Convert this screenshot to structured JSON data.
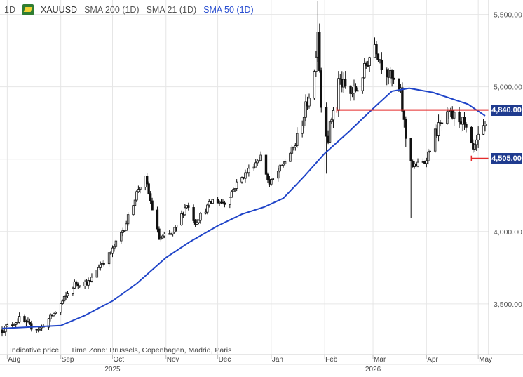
{
  "legend": {
    "timeframe": "1D",
    "symbol": "XAUUSD",
    "indicators": [
      "SMA 200 (1D)",
      "SMA 21 (1D)",
      "SMA 50 (1D)"
    ],
    "indicator_colors": [
      "#555555",
      "#555555",
      "#2a4fd0"
    ],
    "logo_icon": "instrument-flag-icon"
  },
  "footer": {
    "note": "Indicative price",
    "timezone": "Time Zone: Brussels, Copenhagen, Madrid, Paris"
  },
  "colors": {
    "sma50": "#1f44c8",
    "level_line": "#e52b2b",
    "candle": "#111111",
    "grid": "#e6e6e6",
    "tag_bg": "#1f3b8f"
  },
  "price_tags": [
    {
      "label": "4,840.00",
      "value": 4840
    },
    {
      "label": "4,505.00",
      "value": 4505
    }
  ],
  "chart_data": {
    "type": "candlestick",
    "symbol": "XAUUSD",
    "timeframe": "1D",
    "y_range": [
      3150,
      5600
    ],
    "y_ticks": [
      3500,
      4000,
      4500,
      5000,
      5500
    ],
    "y_tick_labels": [
      "3,500.00",
      "4,000.00",
      "4,500.00",
      "5,000.00",
      "5,500.00"
    ],
    "x_range": [
      "2025-07-29",
      "2026-05-05"
    ],
    "x_ticks": [
      {
        "date": "2025-08-01",
        "label": "Aug"
      },
      {
        "date": "2025-09-01",
        "label": "Sep"
      },
      {
        "date": "2025-10-01",
        "label": "Oct"
      },
      {
        "date": "2025-11-01",
        "label": "Nov"
      },
      {
        "date": "2025-12-01",
        "label": "Dec"
      },
      {
        "date": "2026-01-01",
        "label": "Jan"
      },
      {
        "date": "2026-02-01",
        "label": "Feb"
      },
      {
        "date": "2026-03-01",
        "label": "Mar"
      },
      {
        "date": "2026-04-01",
        "label": "Apr"
      },
      {
        "date": "2026-05-01",
        "label": "May"
      }
    ],
    "year_labels": [
      {
        "date": "2025-10-01",
        "label": "2025"
      },
      {
        "date": "2026-03-01",
        "label": "2026"
      }
    ],
    "price_path": [
      [
        "2025-07-29",
        3320
      ],
      [
        "2025-08-08",
        3395
      ],
      [
        "2025-08-14",
        3345
      ],
      [
        "2025-08-20",
        3330
      ],
      [
        "2025-08-29",
        3445
      ],
      [
        "2025-09-09",
        3640
      ],
      [
        "2025-09-18",
        3650
      ],
      [
        "2025-09-23",
        3760
      ],
      [
        "2025-09-30",
        3850
      ],
      [
        "2025-10-08",
        4030
      ],
      [
        "2025-10-16",
        4300
      ],
      [
        "2025-10-20",
        4365
      ],
      [
        "2025-10-28",
        3950
      ],
      [
        "2025-11-05",
        3985
      ],
      [
        "2025-11-13",
        4190
      ],
      [
        "2025-11-18",
        4065
      ],
      [
        "2025-11-28",
        4215
      ],
      [
        "2025-12-05",
        4200
      ],
      [
        "2025-12-12",
        4330
      ],
      [
        "2025-12-26",
        4520
      ],
      [
        "2025-12-31",
        4325
      ],
      [
        "2026-01-08",
        4470
      ],
      [
        "2026-01-15",
        4600
      ],
      [
        "2026-01-21",
        4850
      ],
      [
        "2026-01-26",
        5100
      ],
      [
        "2026-01-28",
        5400
      ],
      [
        "2026-01-30",
        4870
      ],
      [
        "2026-02-03",
        4650
      ],
      [
        "2026-02-09",
        5050
      ],
      [
        "2026-02-16",
        4950
      ],
      [
        "2026-02-20",
        4990
      ],
      [
        "2026-02-26",
        5180
      ],
      [
        "2026-03-02",
        5300
      ],
      [
        "2026-03-06",
        5160
      ],
      [
        "2026-03-12",
        5050
      ],
      [
        "2026-03-17",
        4950
      ],
      [
        "2026-03-20",
        4650
      ],
      [
        "2026-03-24",
        4450
      ],
      [
        "2026-03-31",
        4480
      ],
      [
        "2026-04-07",
        4700
      ],
      [
        "2026-04-14",
        4800
      ],
      [
        "2026-04-21",
        4780
      ],
      [
        "2026-04-28",
        4560
      ],
      [
        "2026-05-05",
        4720
      ]
    ],
    "notable_highs": [
      [
        "2026-01-28",
        5595
      ]
    ],
    "notable_lows": [
      [
        "2026-03-23",
        4095
      ],
      [
        "2026-02-02",
        4400
      ]
    ],
    "sma50": [
      [
        "2025-07-29",
        3330
      ],
      [
        "2025-08-15",
        3340
      ],
      [
        "2025-09-01",
        3350
      ],
      [
        "2025-09-15",
        3420
      ],
      [
        "2025-10-01",
        3520
      ],
      [
        "2025-10-15",
        3640
      ],
      [
        "2025-11-01",
        3820
      ],
      [
        "2025-11-15",
        3930
      ],
      [
        "2025-12-01",
        4040
      ],
      [
        "2025-12-15",
        4120
      ],
      [
        "2025-12-28",
        4170
      ],
      [
        "2026-01-08",
        4230
      ],
      [
        "2026-01-20",
        4380
      ],
      [
        "2026-02-01",
        4540
      ],
      [
        "2026-02-15",
        4690
      ],
      [
        "2026-03-01",
        4850
      ],
      [
        "2026-03-12",
        4970
      ],
      [
        "2026-03-22",
        4990
      ],
      [
        "2026-04-05",
        4960
      ],
      [
        "2026-04-15",
        4920
      ],
      [
        "2026-04-25",
        4880
      ],
      [
        "2026-05-05",
        4800
      ]
    ],
    "levels": [
      {
        "price": 4840,
        "from": "2026-02-08",
        "to": "2026-05-05"
      },
      {
        "price": 4505,
        "from": "2026-04-27",
        "to": "2026-05-05"
      }
    ]
  }
}
